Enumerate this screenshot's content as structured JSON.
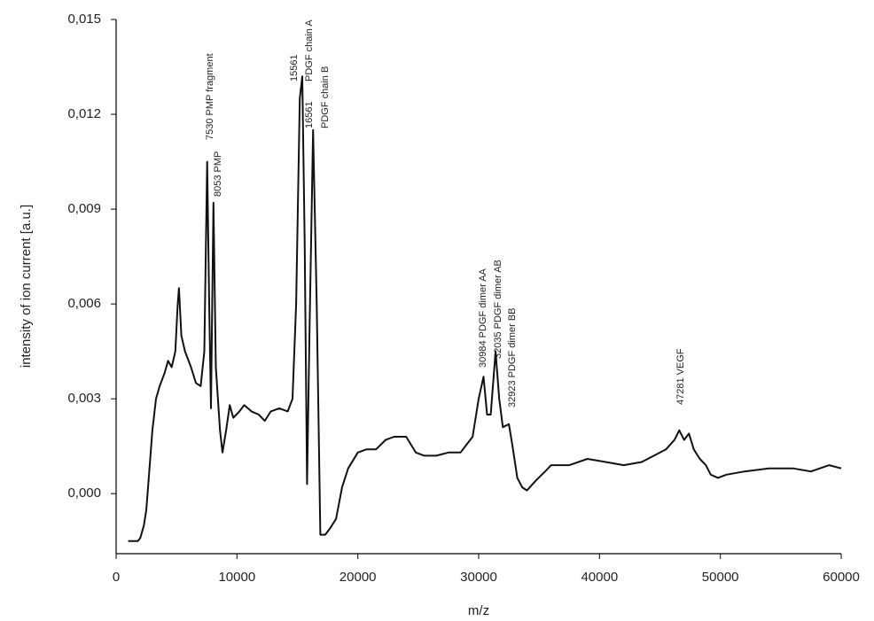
{
  "chart_data": {
    "type": "line",
    "x_label": "m/z",
    "y_label": "intensity of ion current [a.u.]",
    "xlim": [
      0,
      60000
    ],
    "ylim": [
      -0.0019,
      0.015
    ],
    "xticks": [
      0,
      10000,
      20000,
      30000,
      40000,
      50000,
      60000
    ],
    "yticks": [
      {
        "value": 0,
        "label": "0,000"
      },
      {
        "value": 0.003,
        "label": "0,003"
      },
      {
        "value": 0.006,
        "label": "0,006"
      },
      {
        "value": 0.009,
        "label": "0,009"
      },
      {
        "value": 0.012,
        "label": "0,012"
      },
      {
        "value": 0.015,
        "label": "0,015"
      }
    ],
    "annotations": [
      "7530 PMP fragment",
      "8053 PMP",
      "15561",
      "PDGF chain A",
      "16561",
      "PDGF chain B",
      "30984 PDGF dimer AA",
      "32035 PDGF dimer AB",
      "32923 PDGF dimer BB",
      "47281 VEGF"
    ],
    "series": [
      {
        "color": "#111111",
        "x": [
          1000,
          1800,
          2000,
          2300,
          2500,
          2800,
          3000,
          3300,
          3600,
          4000,
          4300,
          4600,
          4900,
          5100,
          5200,
          5400,
          5700,
          6200,
          6600,
          7000,
          7300,
          7530,
          7700,
          7850,
          8053,
          8250,
          8600,
          8800,
          9100,
          9400,
          9700,
          10200,
          10600,
          11200,
          11800,
          12300,
          12800,
          13500,
          14200,
          14600,
          14900,
          15200,
          15400,
          15600,
          15800,
          16000,
          16300,
          16600,
          16900,
          17300,
          17700,
          18200,
          18700,
          19200,
          20000,
          20700,
          21500,
          22300,
          23000,
          24000,
          24800,
          25500,
          26500,
          27500,
          28500,
          29500,
          30000,
          30400,
          30700,
          31000,
          31400,
          31700,
          32000,
          32500,
          32800,
          33200,
          33600,
          34000,
          34700,
          35500,
          36000,
          37500,
          39000,
          40500,
          42000,
          43500,
          44500,
          45500,
          46200,
          46600,
          47000,
          47400,
          47800,
          48300,
          48800,
          49200,
          49800,
          50500,
          52000,
          54000,
          56000,
          57500,
          59000,
          60000
        ],
        "values": [
          -0.0015,
          -0.0015,
          -0.0014,
          -0.001,
          -0.0005,
          0.001,
          0.002,
          0.003,
          0.0034,
          0.0038,
          0.0042,
          0.004,
          0.0045,
          0.006,
          0.0065,
          0.005,
          0.0045,
          0.004,
          0.0035,
          0.0034,
          0.0045,
          0.0105,
          0.006,
          0.0027,
          0.0092,
          0.004,
          0.002,
          0.0013,
          0.002,
          0.0028,
          0.0024,
          0.0026,
          0.0028,
          0.0026,
          0.0025,
          0.0023,
          0.0026,
          0.0027,
          0.0026,
          0.003,
          0.006,
          0.0125,
          0.0132,
          0.008,
          0.0003,
          0.005,
          0.0115,
          0.006,
          -0.0013,
          -0.0013,
          -0.0011,
          -0.0008,
          0.0002,
          0.0008,
          0.0013,
          0.0014,
          0.0014,
          0.0017,
          0.0018,
          0.0018,
          0.0013,
          0.0012,
          0.0012,
          0.0013,
          0.0013,
          0.0018,
          0.003,
          0.0037,
          0.0025,
          0.0025,
          0.0045,
          0.003,
          0.0021,
          0.0022,
          0.0015,
          0.0005,
          0.0002,
          0.0001,
          0.0004,
          0.0007,
          0.0009,
          0.0009,
          0.0011,
          0.001,
          0.0009,
          0.001,
          0.0012,
          0.0014,
          0.0017,
          0.002,
          0.0017,
          0.0019,
          0.0014,
          0.0011,
          0.0009,
          0.0006,
          0.0005,
          0.0006,
          0.0007,
          0.0008,
          0.0008,
          0.0007,
          0.0009,
          0.0008
        ]
      }
    ]
  }
}
